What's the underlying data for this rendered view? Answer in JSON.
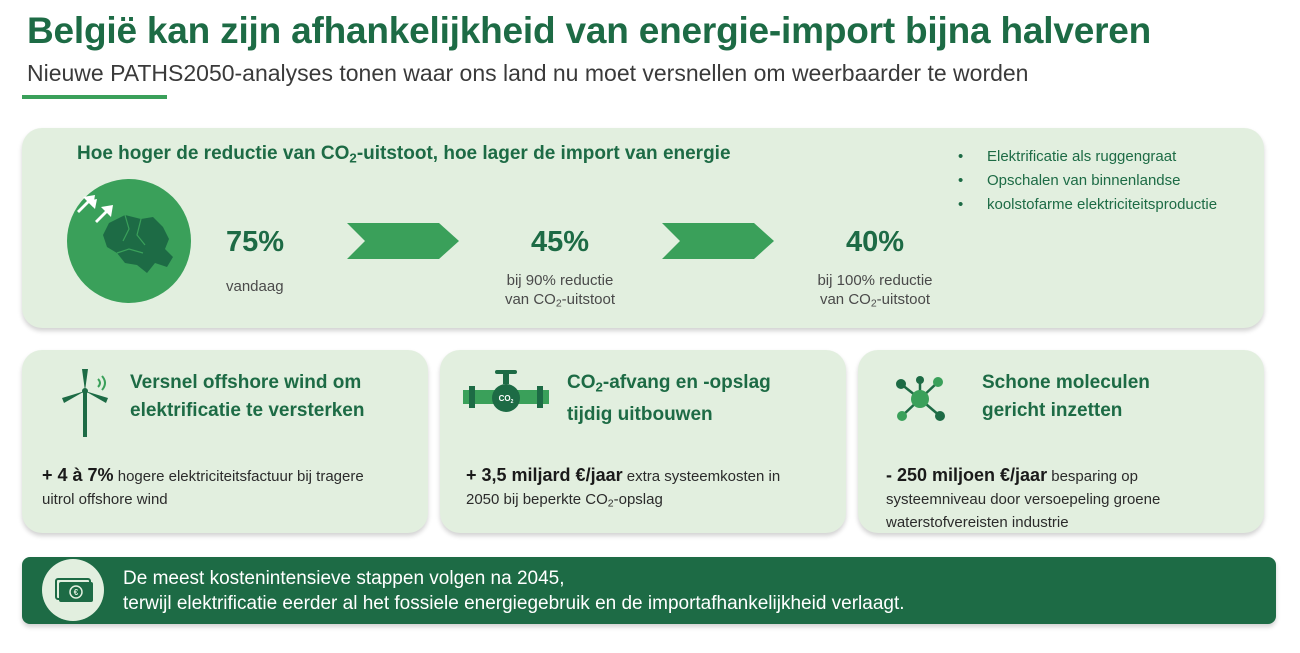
{
  "header": {
    "title": "België kan zijn afhankelijkheid van energie-import bijna halveren",
    "subtitle": "Nieuwe PATHS2050-analyses tonen waar ons land nu moet versnellen om weerbaarder te worden"
  },
  "top_panel": {
    "heading_pre": "Hoe hoger de reductie van CO",
    "heading_sub": "2",
    "heading_post": "-uitstoot, hoe lager de import van energie",
    "icon": "belgium-map-import-arrows-icon",
    "stats": [
      {
        "value": "75%",
        "caption_line1": "vandaag"
      },
      {
        "value": "45%",
        "caption_line1": "bij 90% reductie",
        "caption_line2_pre": "van CO",
        "caption_line2_sub": "2",
        "caption_line2_post": "-uitstoot"
      },
      {
        "value": "40%",
        "caption_line1": "bij 100% reductie",
        "caption_line2_pre": "van CO",
        "caption_line2_sub": "2",
        "caption_line2_post": "-uitstoot"
      }
    ],
    "bullets": [
      "Elektrificatie als ruggengraat",
      "Opschalen  van binnenlandse",
      "koolstofarme elektriciteitsproductie"
    ]
  },
  "cards": [
    {
      "icon": "wind-turbine-icon",
      "title_line1": "Versnel offshore wind om",
      "title_line2": "elektrificatie te versterken",
      "highlight": "+ 4 à 7%",
      "body_line1": " hogere elektriciteitsfactuur bij tragere",
      "body_line2": "uitrol offshore wind"
    },
    {
      "icon": "co2-pipeline-valve-icon",
      "icon_label": "CO",
      "icon_label_sub": "2",
      "title_line1_pre": "CO",
      "title_line1_sub": "2",
      "title_line1_post": "-afvang en -opslag",
      "title_line2": "tijdig uitbouwen",
      "highlight": "+ 3,5 miljard €/jaar",
      "body_line1": " extra systeemkosten in",
      "body_line2_pre": "2050 bij beperkte CO",
      "body_line2_sub": "2",
      "body_line2_post": "-opslag"
    },
    {
      "icon": "molecule-icon",
      "title_line1": "Schone moleculen",
      "title_line2": "gericht inzetten",
      "highlight": "- 250 miljoen €/jaar",
      "body_line1": " besparing op",
      "body_line2": "systeemniveau door versoepeling groene",
      "body_line3": "waterstofvereisten industrie"
    }
  ],
  "footer": {
    "icon": "money-banknotes-icon",
    "line1": "De meest kostenintensieve stappen volgen na 2045,",
    "line2": "terwijl elektrificatie eerder al het fossiele energiegebruik en de importafhankelijkheid verlaagt."
  },
  "colors": {
    "brand_green": "#1d6b45",
    "accent_green": "#3aa05a",
    "panel_bg": "#e2efdf"
  }
}
